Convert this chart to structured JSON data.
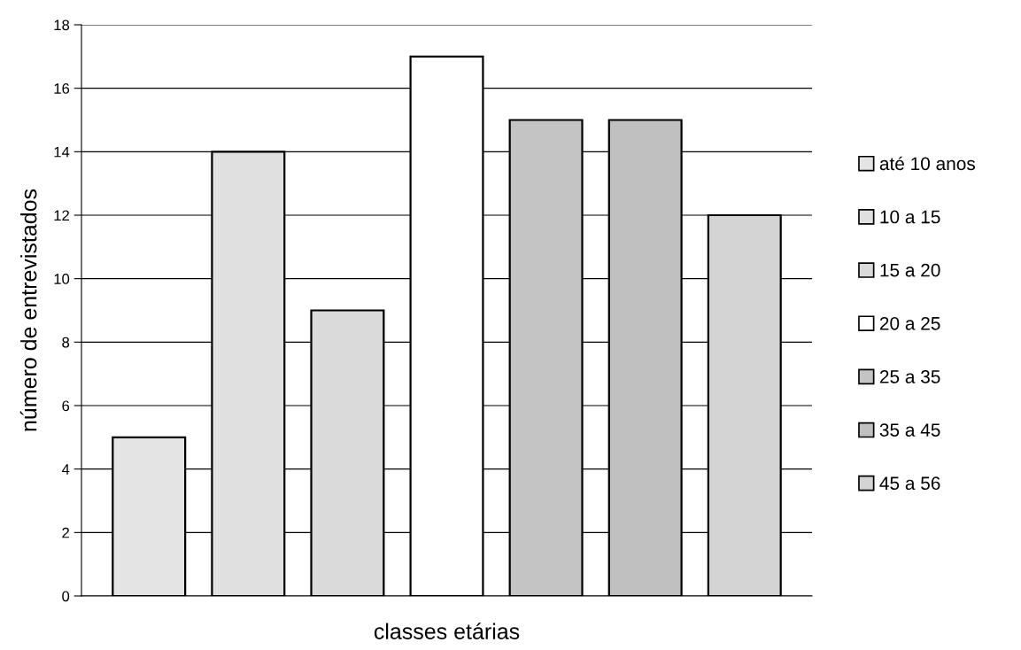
{
  "chart_data": {
    "type": "bar",
    "xlabel": "classes etárias",
    "ylabel": "número de entrevistados",
    "categories": [
      null
    ],
    "series": [
      {
        "name": "até 10 anos",
        "color": "#e4e4e4",
        "values": [
          5
        ]
      },
      {
        "name": "10 a 15",
        "color": "#e0e0e0",
        "values": [
          14
        ]
      },
      {
        "name": "15 a 20",
        "color": "#dadada",
        "values": [
          9
        ]
      },
      {
        "name": "20 a 25",
        "color": "#ffffff",
        "values": [
          17
        ]
      },
      {
        "name": "25 a 35",
        "color": "#c4c4c4",
        "values": [
          15
        ]
      },
      {
        "name": "35 a 45",
        "color": "#c0c0c0",
        "values": [
          15
        ]
      },
      {
        "name": "45 a 56",
        "color": "#d4d4d4",
        "values": [
          12
        ]
      }
    ],
    "ylim": [
      0,
      18
    ],
    "yticks": [
      0,
      2,
      4,
      6,
      8,
      10,
      12,
      14,
      16,
      18
    ],
    "grid": "y",
    "legend": "right"
  }
}
